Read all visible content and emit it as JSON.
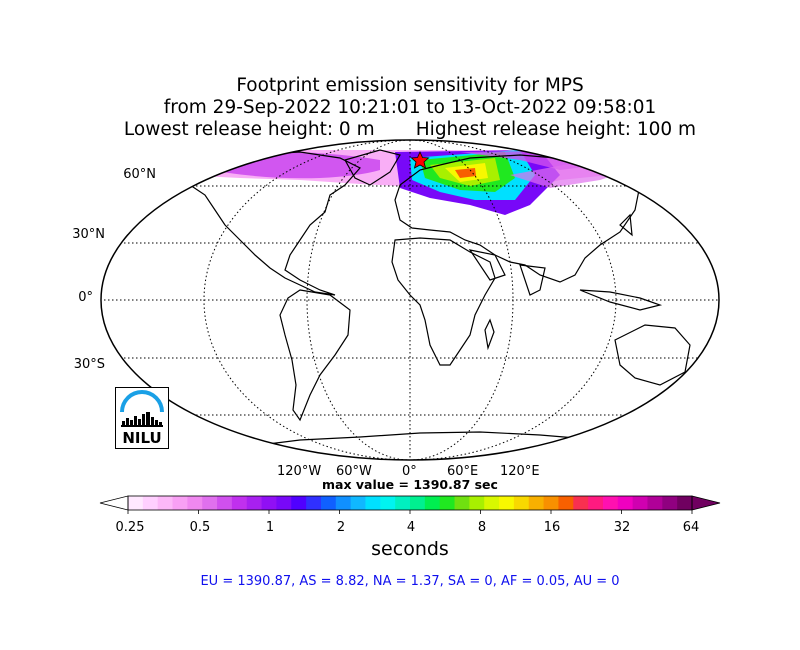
{
  "title": {
    "line1": "Footprint emission sensitivity for MPS",
    "line2": "from 29-Sep-2022 10:21:01 to 13-Oct-2022 09:58:01",
    "line3": "Lowest release height: 0 m       Highest release height: 100 m"
  },
  "map": {
    "projection": "robinson",
    "lat_labels": [
      "60°N",
      "30°N",
      "0°",
      "30°S"
    ],
    "lon_labels": [
      "120°W",
      "60°W",
      "0°",
      "60°E",
      "120°E"
    ],
    "release_site_marker": "star",
    "plume_region": "Europe / North Atlantic / Arctic"
  },
  "max_value": "max value = 1390.87 sec",
  "colorbar": {
    "scale": "log",
    "ticks": [
      "0.25",
      "0.5",
      "1",
      "2",
      "4",
      "8",
      "16",
      "32",
      "64"
    ],
    "unit_label": "seconds",
    "colors": [
      "#ffe8ff",
      "#ffd0ff",
      "#fcb8f8",
      "#f8a0f4",
      "#f088f0",
      "#e070ee",
      "#d050ee",
      "#c030ee",
      "#a820f0",
      "#9010f4",
      "#7808f8",
      "#5000ff",
      "#3030ff",
      "#1060ff",
      "#1090ff",
      "#10b8ff",
      "#00e0ff",
      "#00f4f0",
      "#00f0c0",
      "#00f090",
      "#00ee50",
      "#20e820",
      "#70e010",
      "#a8f000",
      "#d8f800",
      "#f8f800",
      "#f8d800",
      "#f8b000",
      "#f89000",
      "#f86000",
      "#f83050",
      "#ff1a80",
      "#ff10b0",
      "#f000c0",
      "#d000b0",
      "#b00098",
      "#900080",
      "#700060"
    ]
  },
  "region_sums": "EU = 1390.87,  AS = 8.82,  NA = 1.37,  SA = 0,  AF = 0.05,  AU = 0",
  "logo": {
    "text": "NILU"
  }
}
